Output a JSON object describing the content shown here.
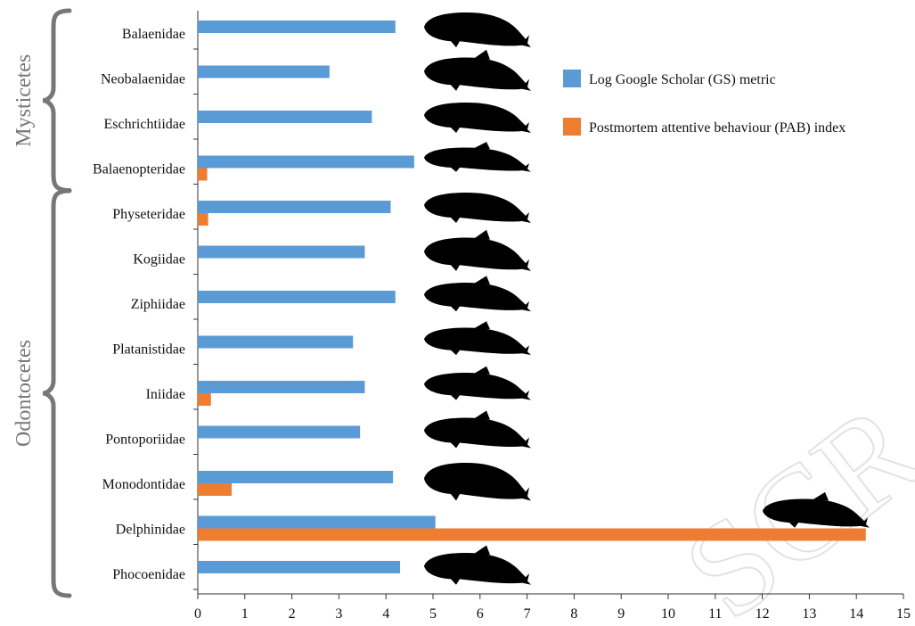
{
  "chart_data": {
    "type": "bar",
    "orientation": "horizontal",
    "categories": [
      "Balaenidae",
      "Neobalaenidae",
      "Eschrichtiidae",
      "Balaenopteridae",
      "Physeteridae",
      "Kogiidae",
      "Ziphiidae",
      "Platanistidae",
      "Iniidae",
      "Pontoporiidae",
      "Monodontidae",
      "Delphinidae",
      "Phocoenidae"
    ],
    "series": [
      {
        "name": "Log Google Scholar (GS) metric",
        "color": "#5b9bd5",
        "values": [
          4.2,
          2.8,
          3.7,
          4.6,
          4.1,
          3.55,
          4.2,
          3.3,
          3.55,
          3.45,
          4.15,
          5.05,
          4.3
        ]
      },
      {
        "name": "Postmortem attentive behaviour (PAB) index",
        "color": "#ed7d31",
        "values": [
          0,
          0,
          0,
          0.2,
          0.22,
          0,
          0,
          0,
          0.28,
          0,
          0.72,
          14.2,
          0
        ]
      }
    ],
    "xlim": [
      0,
      15
    ],
    "xticks": [
      "0",
      "1",
      "2",
      "3",
      "4",
      "5",
      "6",
      "7",
      "8",
      "9",
      "10",
      "11",
      "12",
      "13",
      "14",
      "15"
    ],
    "groups": [
      {
        "label": "Mysticetes",
        "from": 0,
        "to": 3
      },
      {
        "label": "Odontocetes",
        "from": 4,
        "to": 12
      }
    ],
    "legend_position": "top-right",
    "grid": false,
    "icons": [
      "right-whale-silhouette",
      "pygmy-right-whale-silhouette",
      "gray-whale-silhouette",
      "rorqual-silhouette",
      "sperm-whale-silhouette",
      "pygmy-sperm-whale-silhouette",
      "beaked-whale-silhouette",
      "river-dolphin-silhouette",
      "boto-silhouette",
      "franciscana-silhouette",
      "beluga-silhouette",
      "dolphin-silhouette",
      "porpoise-silhouette"
    ],
    "watermark_text": "SCR"
  }
}
